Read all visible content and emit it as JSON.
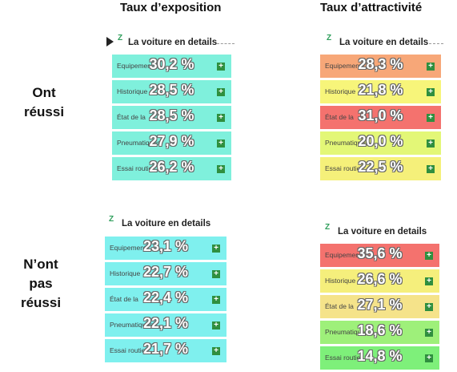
{
  "columns": {
    "exposure": "Taux d’exposition",
    "attractiveness": "Taux d’attractivité"
  },
  "rows": {
    "success": [
      "Ont",
      "réussi"
    ],
    "failure": [
      "N’ont",
      "pas",
      "réussi"
    ]
  },
  "panel_title": "La voiture en details",
  "logo_mark": "Z",
  "colors": {
    "teal": "#7ff0dc",
    "plus_icon": "#2f8f3f"
  },
  "panels": {
    "success_exposure": [
      {
        "label": "Equipements",
        "value": "30,2 %",
        "color": "#7ff0dc"
      },
      {
        "label": "Historique",
        "value": "28,5 %",
        "color": "#7ff0dc"
      },
      {
        "label": "État de la",
        "value": "28,5 %",
        "color": "#7ff0dc"
      },
      {
        "label": "Pneumatiques",
        "value": "27,9 %",
        "color": "#7ff0dc"
      },
      {
        "label": "Essai routier",
        "value": "26,2 %",
        "color": "#7ff0dc"
      }
    ],
    "success_attractiveness": [
      {
        "label": "Equipements",
        "value": "28,3 %",
        "color": "#f7a778"
      },
      {
        "label": "Historique",
        "value": "21,8 %",
        "color": "#f7f57a"
      },
      {
        "label": "État de la",
        "value": "31,0 %",
        "color": "#f4726e"
      },
      {
        "label": "Pneumatiques",
        "value": "20,0 %",
        "color": "#e3f777"
      },
      {
        "label": "Essai routier",
        "value": "22,5 %",
        "color": "#f5f07a"
      }
    ],
    "failure_exposure": [
      {
        "label": "Equipements",
        "value": "23,1 %",
        "color": "#7ff0ee"
      },
      {
        "label": "Historique",
        "value": "22,7 %",
        "color": "#7ff0ee"
      },
      {
        "label": "État de la",
        "value": "22,4 %",
        "color": "#7ff0ee"
      },
      {
        "label": "Pneumatiques",
        "value": "22,1 %",
        "color": "#7ff0ee"
      },
      {
        "label": "Essai routier",
        "value": "21,7 %",
        "color": "#7ff0ee"
      }
    ],
    "failure_attractiveness": [
      {
        "label": "Equipements",
        "value": "35,6 %",
        "color": "#f4726e"
      },
      {
        "label": "Historique",
        "value": "26,6 %",
        "color": "#f5ef7c"
      },
      {
        "label": "État de la",
        "value": "27,1 %",
        "color": "#f5e38a"
      },
      {
        "label": "Pneumatiques",
        "value": "18,6 %",
        "color": "#9ef07a"
      },
      {
        "label": "Essai routier",
        "value": "14,8 %",
        "color": "#7ef07a"
      }
    ]
  }
}
